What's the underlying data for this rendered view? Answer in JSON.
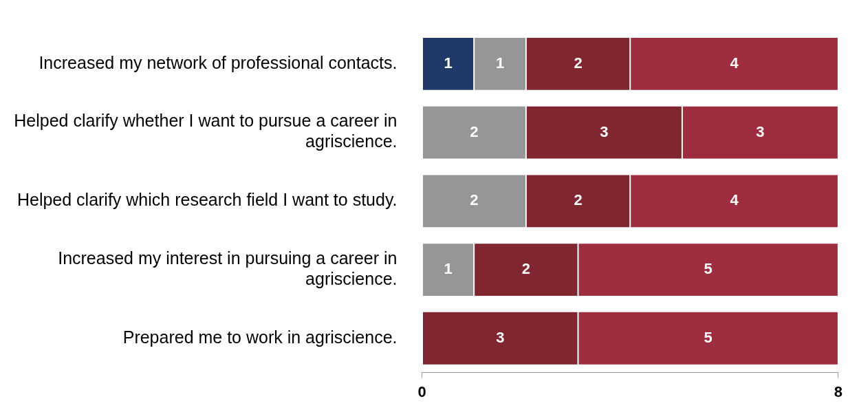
{
  "chart_data": {
    "type": "bar",
    "orientation": "horizontal",
    "stacked": true,
    "data_labels": true,
    "legend": false,
    "grid": false,
    "categories": [
      "Increased my network of professional contacts.",
      "Helped clarify whether I want to pursue a career in agriscience.",
      "Helped clarify which research field I want to study.",
      "Increased my interest in pursuing a career in agriscience.",
      "Prepared me to work in agriscience."
    ],
    "series": [
      {
        "color": "#1f3a68",
        "values": [
          1,
          null,
          null,
          null,
          null
        ]
      },
      {
        "color": "#969696",
        "values": [
          1,
          2,
          2,
          1,
          null
        ]
      },
      {
        "color": "#7f2631",
        "values": [
          2,
          3,
          2,
          2,
          3
        ]
      },
      {
        "color": "#9e2d3f",
        "values": [
          4,
          3,
          4,
          5,
          5
        ]
      }
    ],
    "xlim": [
      0,
      8
    ],
    "xticks": [
      0,
      8
    ]
  }
}
